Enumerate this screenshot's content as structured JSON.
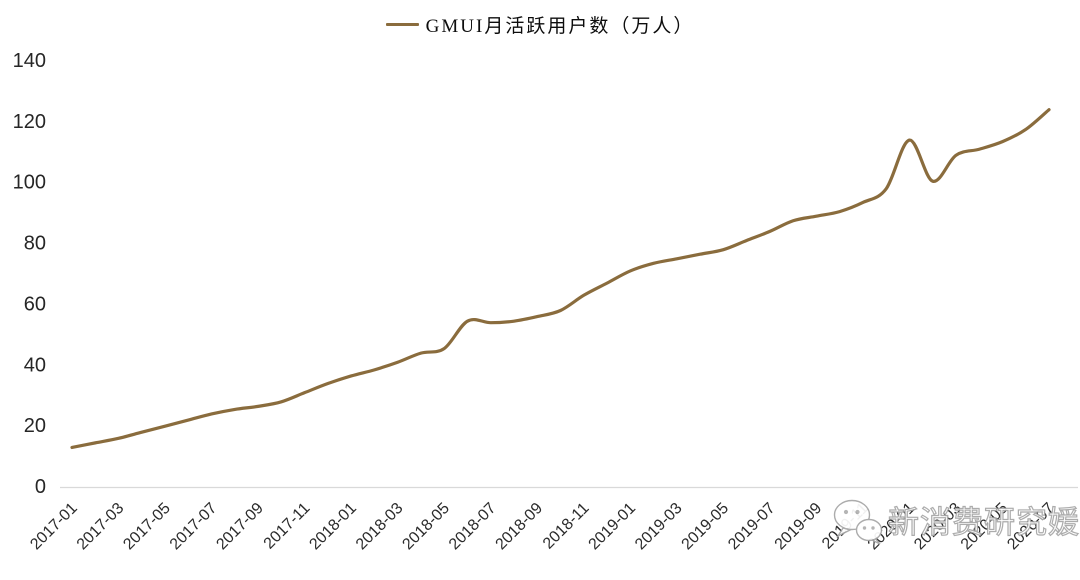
{
  "legend": {
    "label": "GMUI月活跃用户数（万人）"
  },
  "watermark": {
    "text": "新消费研究媛",
    "icon": "wechat-icon"
  },
  "colors": {
    "line": "#8a6c3d",
    "axis_text": "#262626",
    "baseline": "#d9d9d9",
    "watermark_stroke": "#a6a6a6"
  },
  "chart_data": {
    "type": "line",
    "title": "GMUI月活跃用户数（万人）",
    "legend_position": "top-center",
    "grid": "x-axis-baseline-only",
    "smooth": true,
    "ylim": [
      0,
      140
    ],
    "yticks": [
      0,
      20,
      40,
      60,
      80,
      100,
      120,
      140
    ],
    "x": [
      "2017-01",
      "2017-02",
      "2017-03",
      "2017-04",
      "2017-05",
      "2017-06",
      "2017-07",
      "2017-08",
      "2017-09",
      "2017-10",
      "2017-11",
      "2017-12",
      "2018-01",
      "2018-02",
      "2018-03",
      "2018-04",
      "2018-05",
      "2018-06",
      "2018-07",
      "2018-08",
      "2018-09",
      "2018-10",
      "2018-11",
      "2018-12",
      "2019-01",
      "2019-02",
      "2019-03",
      "2019-04",
      "2019-05",
      "2019-06",
      "2019-07",
      "2019-08",
      "2019-09",
      "2019-10",
      "2019-11",
      "2019-12",
      "2020-01",
      "2020-02",
      "2020-03",
      "2020-04",
      "2020-05",
      "2020-06",
      "2020-07"
    ],
    "xtick_labels": [
      "2017-01",
      "2017-03",
      "2017-05",
      "2017-07",
      "2017-09",
      "2017-11",
      "2018-01",
      "2018-03",
      "2018-05",
      "2018-07",
      "2018-09",
      "2018-11",
      "2019-01",
      "2019-03",
      "2019-05",
      "2019-07",
      "2019-09",
      "2019-11",
      "2020-01",
      "2020-03",
      "2020-05",
      "2020-07"
    ],
    "series": [
      {
        "name": "GMUI月活跃用户数（万人）",
        "values": [
          13,
          14.5,
          16,
          18,
          20,
          22,
          24,
          25.5,
          26.5,
          28,
          31,
          34,
          36.5,
          38.5,
          41,
          44,
          45.5,
          54.5,
          54,
          54.5,
          56,
          58,
          63,
          67,
          71,
          73.5,
          75,
          76.5,
          78,
          81,
          84,
          87.5,
          89,
          90.5,
          93.5,
          98,
          114,
          100.5,
          109,
          111,
          113.5,
          117.5,
          124
        ]
      }
    ]
  }
}
